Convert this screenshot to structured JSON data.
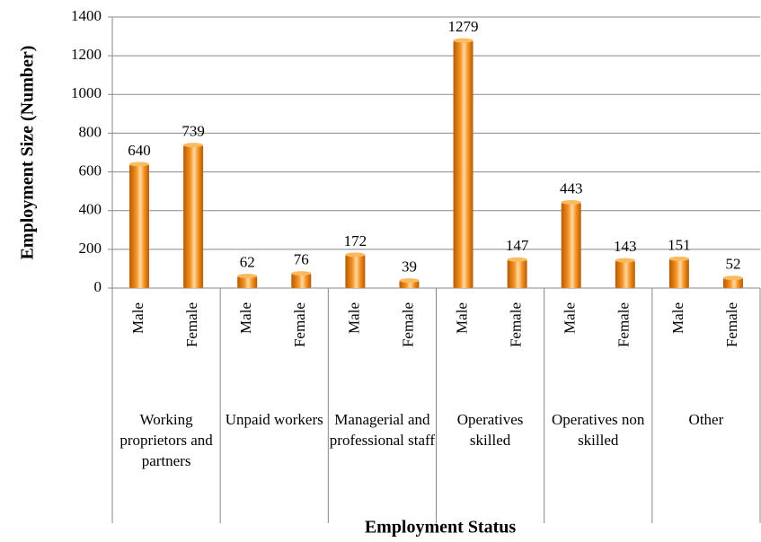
{
  "chart_data": {
    "type": "bar",
    "ylabel": "Employment Size (Number)",
    "xlabel": "Employment Status",
    "color": "#f39224",
    "ylim": [
      0,
      1400
    ],
    "yticks": [
      0,
      200,
      400,
      600,
      800,
      1000,
      1200,
      1400
    ],
    "grid": true,
    "groups": [
      {
        "name": "Working proprietors and partners",
        "categories": [
          "Male",
          "Female"
        ],
        "values": [
          640,
          739
        ]
      },
      {
        "name": "Unpaid workers",
        "categories": [
          "Male",
          "Female"
        ],
        "values": [
          62,
          76
        ]
      },
      {
        "name": "Managerial and professional staff",
        "categories": [
          "Male",
          "Female"
        ],
        "values": [
          172,
          39
        ]
      },
      {
        "name": "Operatives skilled",
        "categories": [
          "Male",
          "Female"
        ],
        "values": [
          1279,
          147
        ]
      },
      {
        "name": "Operatives non skilled",
        "categories": [
          "Male",
          "Female"
        ],
        "values": [
          443,
          143
        ]
      },
      {
        "name": "Other",
        "categories": [
          "Male",
          "Female"
        ],
        "values": [
          151,
          52
        ]
      }
    ]
  }
}
